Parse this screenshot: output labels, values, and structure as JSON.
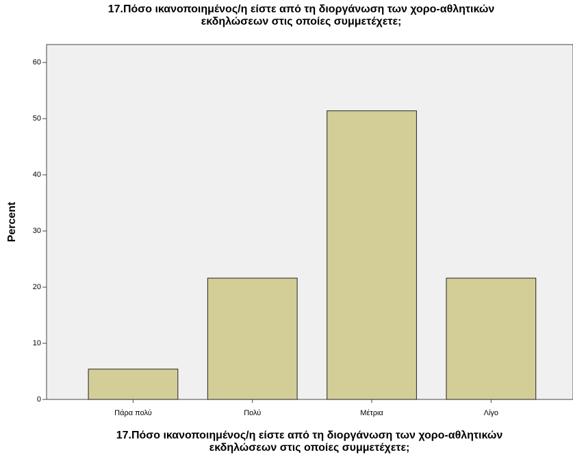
{
  "chart_data": {
    "type": "bar",
    "title": [
      "17.Πόσο ικανοποιημένος/η είστε από τη διοργάνωση των χορο-αθλητικών",
      "εκδηλώσεων στις οποίες συμμετέχετε;"
    ],
    "x_label": [
      "17.Πόσο ικανοποιημένος/η είστε από τη διοργάνωση των χορο-αθλητικών",
      "εκδηλώσεων στις οποίες συμμετέχετε;"
    ],
    "y_label": "Percent",
    "categories": [
      "Πάρα πολύ",
      "Πολύ",
      "Μέτρια",
      "Λίγο"
    ],
    "values": [
      5.4,
      21.6,
      51.4,
      21.6
    ],
    "color": "#d3ce97",
    "ylim": [
      0,
      63.2
    ],
    "yticks": [
      0,
      10,
      20,
      30,
      40,
      50,
      60
    ],
    "grid": false
  }
}
